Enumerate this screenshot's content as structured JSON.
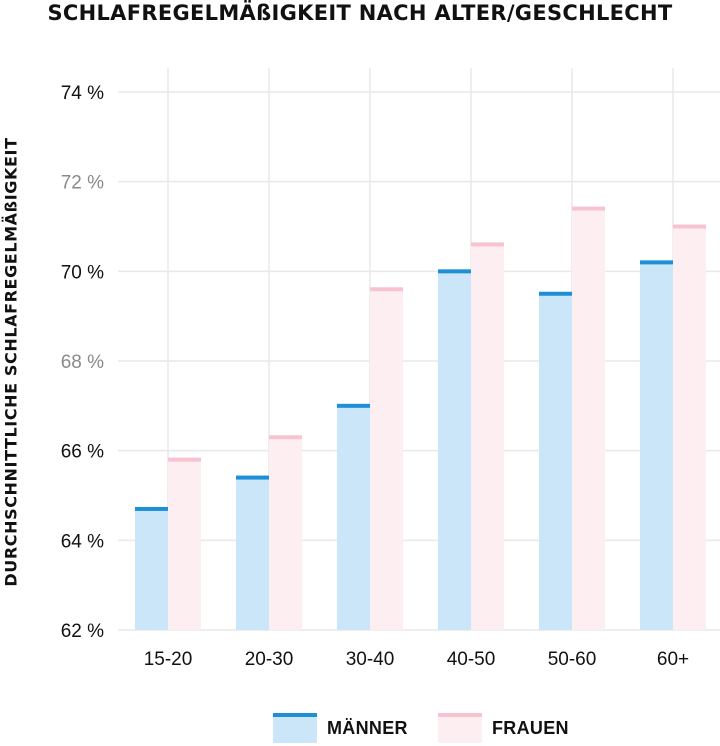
{
  "chart_data": {
    "type": "bar",
    "title": "SCHLAFREGELMÄßIGKEIT NACH ALTER/GESCHLECHT",
    "xlabel": "",
    "ylabel": "DURCHSCHNITTLICHE SCHLAFREGELMÄßIGKEIT",
    "categories": [
      "15-20",
      "20-30",
      "30-40",
      "40-50",
      "50-60",
      "60+"
    ],
    "series": [
      {
        "name": "MÄNNER",
        "values": [
          64.7,
          65.4,
          67.0,
          70.0,
          69.5,
          70.2
        ]
      },
      {
        "name": "FRAUEN",
        "values": [
          65.8,
          66.3,
          69.6,
          70.6,
          71.4,
          71.0
        ]
      }
    ],
    "ylim": [
      62,
      74
    ],
    "yticks": [
      {
        "value": 62,
        "label": "62 %",
        "emphasis": false
      },
      {
        "value": 64,
        "label": "64 %",
        "emphasis": false
      },
      {
        "value": 66,
        "label": "66 %",
        "emphasis": false
      },
      {
        "value": 68,
        "label": "68 %",
        "emphasis": true
      },
      {
        "value": 70,
        "label": "70 %",
        "emphasis": false
      },
      {
        "value": 72,
        "label": "72 %",
        "emphasis": true
      },
      {
        "value": 74,
        "label": "74 %",
        "emphasis": false
      }
    ],
    "grid": true,
    "legend_position": "bottom-center",
    "colors": {
      "maenner_fill": "#cbe6f8",
      "maenner_line": "#1e8fd6",
      "frauen_fill": "#fdeef2",
      "frauen_line": "#f8c3d1",
      "grid": "#e9e9e9",
      "tick_text": "#111111",
      "tick_text_emphasis": "#8a8a8a"
    }
  }
}
